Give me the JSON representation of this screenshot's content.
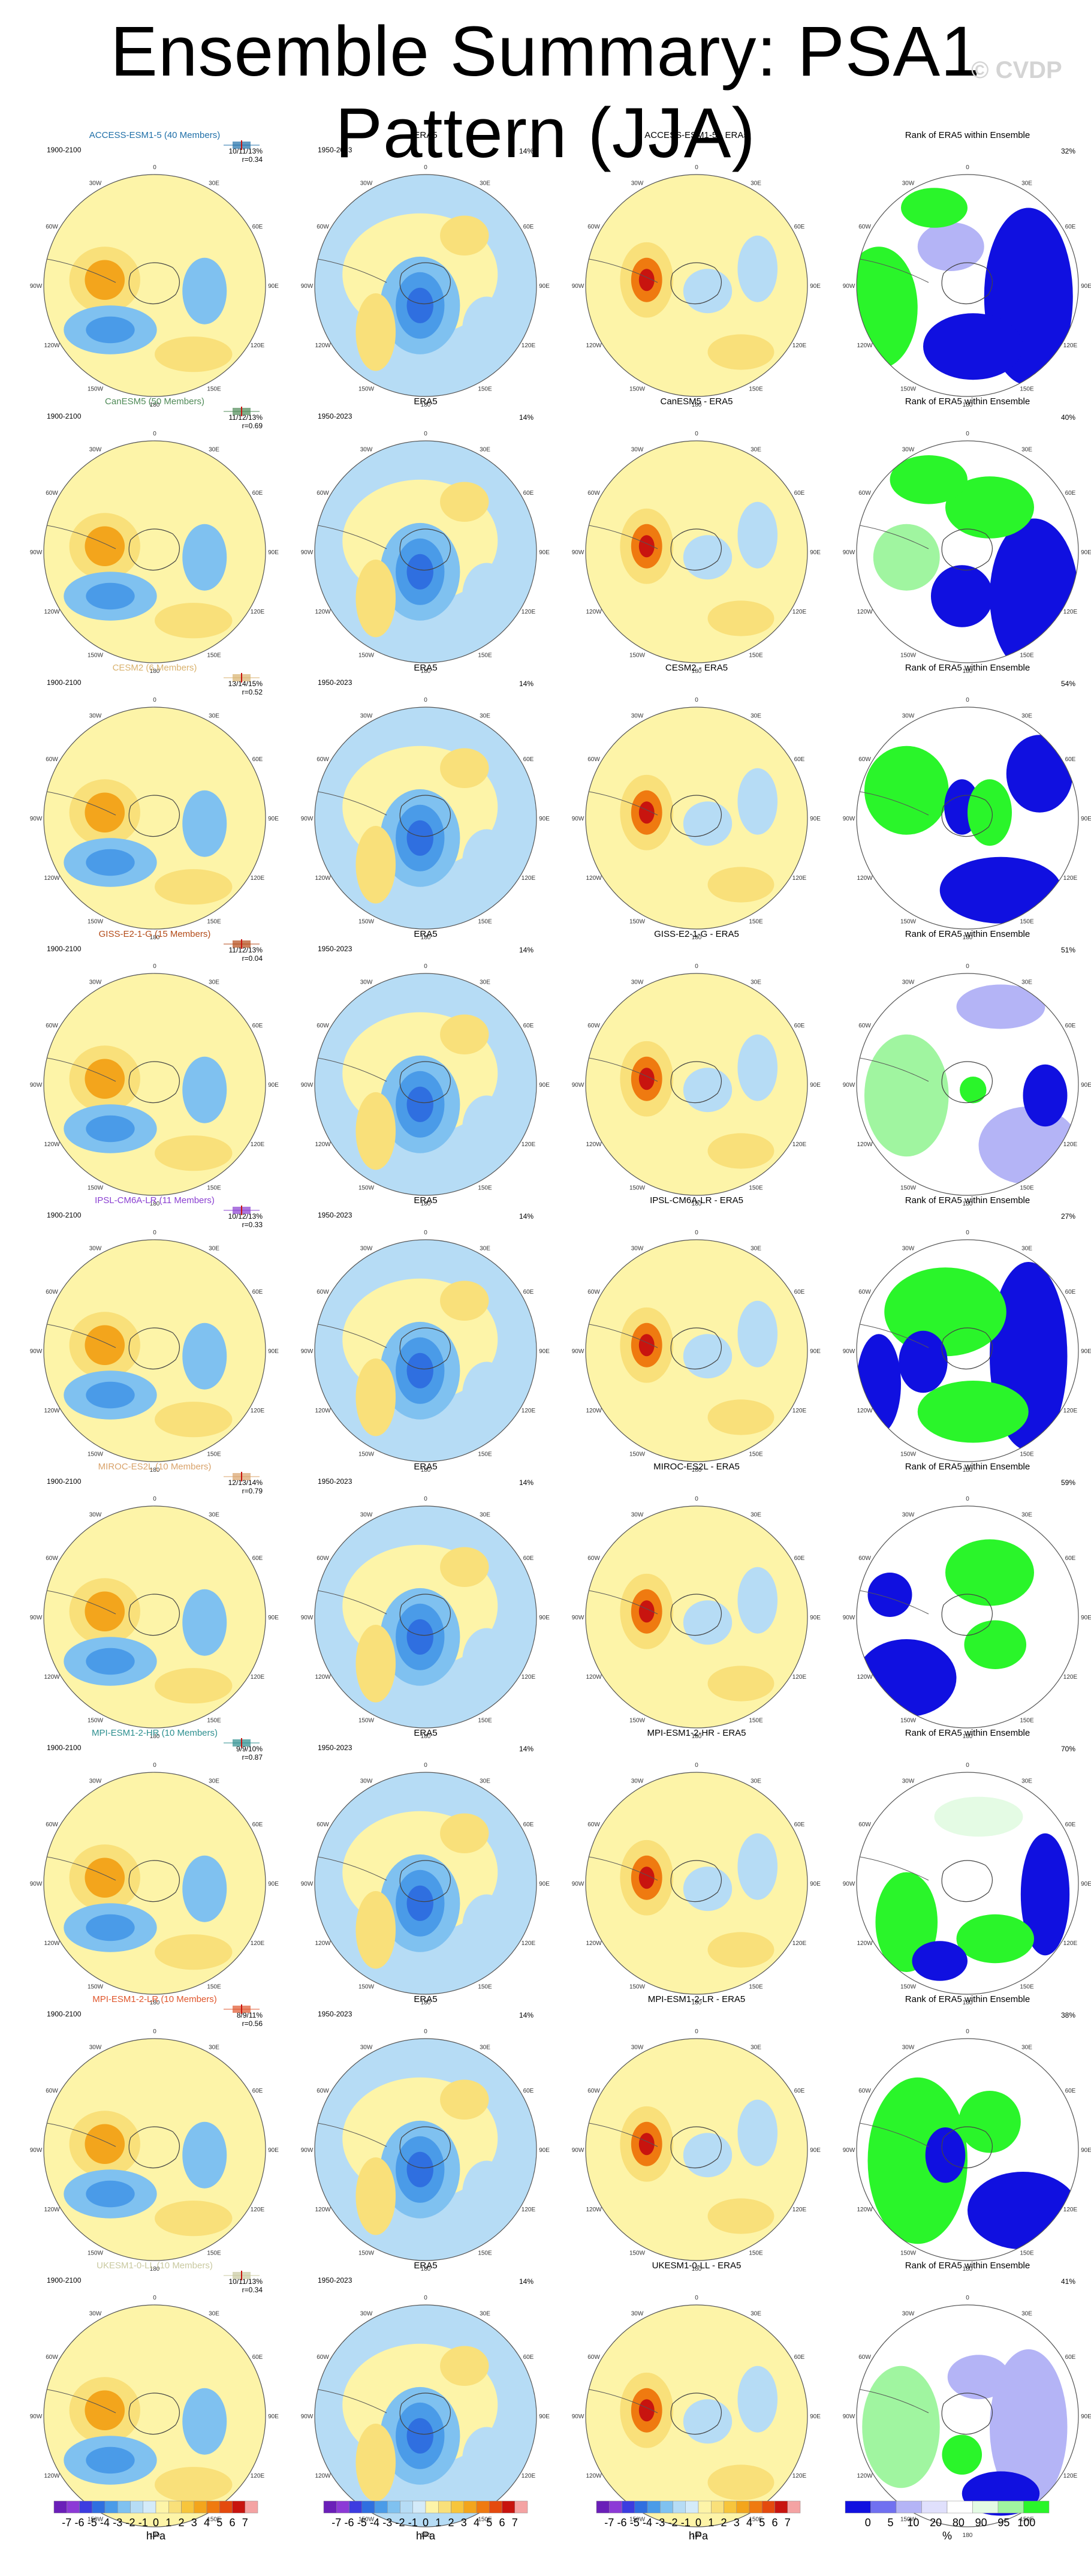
{
  "title": "Ensemble Summary: PSA1 Pattern (JJA)",
  "watermark": "© CVDP",
  "chart_data": {
    "type": "polar-map-grid",
    "title": "Ensemble Summary: PSA1 Pattern (JJA)",
    "column_titles": [
      "",
      "ERA5",
      "",
      "Rank of ERA5 within Ensemble"
    ],
    "model_period": "1900-2100",
    "obs_period": "1950-2023",
    "obs_variance": "14%",
    "lon_labels": [
      "0",
      "30E",
      "60E",
      "90E",
      "120E",
      "150E",
      "180",
      "150W",
      "120W",
      "90W",
      "60W",
      "30W"
    ],
    "rows": [
      {
        "model": "ACCESS-ESM1-5 (40 Members)",
        "color": "#1f6fa8",
        "stats": "10/11/13%",
        "r": "r=0.34",
        "diff": "ACCESS-ESM1-5 - ERA5",
        "rank_pct": "32%"
      },
      {
        "model": "CanESM5 (50 Members)",
        "color": "#4f8a57",
        "stats": "11/12/13%",
        "r": "r=0.69",
        "diff": "CanESM5 - ERA5",
        "rank_pct": "40%"
      },
      {
        "model": "CESM2 (6 Members)",
        "color": "#d9b26e",
        "stats": "13/14/15%",
        "r": "r=0.52",
        "diff": "CESM2 - ERA5",
        "rank_pct": "54%"
      },
      {
        "model": "GISS-E2-1-G (15 Members)",
        "color": "#b34a17",
        "stats": "11/12/13%",
        "r": "r=0.04",
        "diff": "GISS-E2-1-G - ERA5",
        "rank_pct": "51%"
      },
      {
        "model": "IPSL-CM6A-LR (11 Members)",
        "color": "#8a3fd1",
        "stats": "10/12/13%",
        "r": "r=0.33",
        "diff": "IPSL-CM6A-LR - ERA5",
        "rank_pct": "27%"
      },
      {
        "model": "MIROC-ES2L (10 Members)",
        "color": "#d9a36b",
        "stats": "12/13/14%",
        "r": "r=0.79",
        "diff": "MIROC-ES2L - ERA5",
        "rank_pct": "59%"
      },
      {
        "model": "MPI-ESM1-2-HR (10 Members)",
        "color": "#2c8f8f",
        "stats": "9/9/10%",
        "r": "r=0.87",
        "diff": "MPI-ESM1-2-HR - ERA5",
        "rank_pct": "70%"
      },
      {
        "model": "MPI-ESM1-2-LR (10 Members)",
        "color": "#e0562c",
        "stats": "8/9/11%",
        "r": "r=0.56",
        "diff": "MPI-ESM1-2-LR - ERA5",
        "rank_pct": "38%"
      },
      {
        "model": "UKESM1-0-LL (10 Members)",
        "color": "#c9c9a0",
        "stats": "10/11/13%",
        "r": "r=0.34",
        "diff": "UKESM1-0-LL - ERA5",
        "rank_pct": "41%"
      }
    ],
    "colorbar_hpa": {
      "label": "hPa",
      "tick_labels": [
        "-7",
        "-6",
        "-5",
        "-4",
        "-3",
        "-2",
        "-1",
        "0",
        "1",
        "2",
        "3",
        "4",
        "5",
        "6",
        "7"
      ],
      "colors": [
        "#6a1fb8",
        "#8c3ad6",
        "#3c3ce0",
        "#2f6fe0",
        "#4a9be8",
        "#7fc1f0",
        "#b6dcf5",
        "#d4ebf9",
        "#fdf4a8",
        "#f9e07a",
        "#f7c53c",
        "#f3a51c",
        "#ef7a10",
        "#e44a0e",
        "#c8140f",
        "#f4a3a3"
      ]
    },
    "colorbar_pct": {
      "label": "%",
      "tick_labels": [
        "0",
        "5",
        "10",
        "20",
        "80",
        "90",
        "95",
        "100"
      ],
      "colors": [
        "#1010e0",
        "#7070f0",
        "#b4b4f6",
        "#e0e0fc",
        "#ffffff",
        "#e4fbe4",
        "#a0f5a0",
        "#2af52a"
      ]
    }
  }
}
